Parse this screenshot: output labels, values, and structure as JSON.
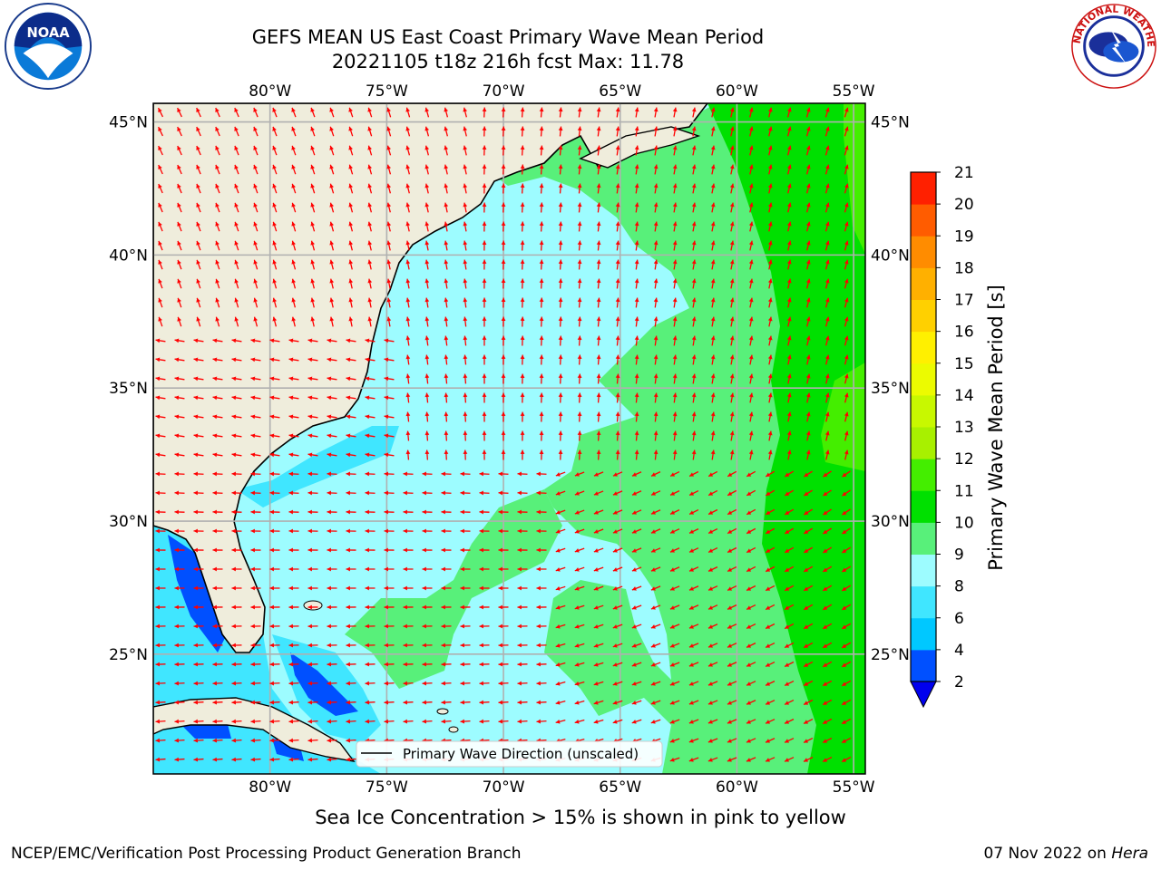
{
  "header": {
    "title_line1": "GEFS MEAN US East Coast Primary Wave Mean Period",
    "title_line2": "20221105 t18z 216h fcst   Max: 11.78"
  },
  "logos": {
    "left": "NOAA",
    "right": "NATIONAL WEATHER SERVICE"
  },
  "map": {
    "lon_ticks": [
      "80°W",
      "75°W",
      "70°W",
      "65°W",
      "60°W",
      "55°W"
    ],
    "lat_ticks": [
      "45°N",
      "40°N",
      "35°N",
      "30°N",
      "25°N"
    ],
    "lon_range": [
      -85,
      -54.5
    ],
    "lat_range": [
      20.5,
      45.7
    ],
    "legend_label": "Primary Wave Direction (unscaled)",
    "colors": {
      "land": "#efeddc",
      "grid": "#b0b0b0",
      "arrow": "#ff0000",
      "coast": "#000000"
    }
  },
  "colorbar": {
    "label": "Primary Wave Mean Period [s]",
    "levels": [
      "2",
      "4",
      "6",
      "8",
      "9",
      "10",
      "11",
      "12",
      "13",
      "14",
      "15",
      "16",
      "17",
      "18",
      "19",
      "20",
      "21"
    ],
    "colors": [
      "#0050ff",
      "#00c8ff",
      "#40e6ff",
      "#9dfcff",
      "#58f07a",
      "#00e000",
      "#44ee00",
      "#a8f000",
      "#c8f800",
      "#ecfb00",
      "#fff000",
      "#ffd000",
      "#ffb000",
      "#ff8c00",
      "#ff5c00",
      "#ff2000"
    ],
    "under_color": "#0000ee"
  },
  "notes": {
    "sea_ice": "Sea Ice Concentration > 15% is shown in pink to yellow"
  },
  "footer": {
    "left": "NCEP/EMC/Verification Post Processing Product Generation Branch",
    "date": "07 Nov 2022 on",
    "host": "Hera"
  }
}
